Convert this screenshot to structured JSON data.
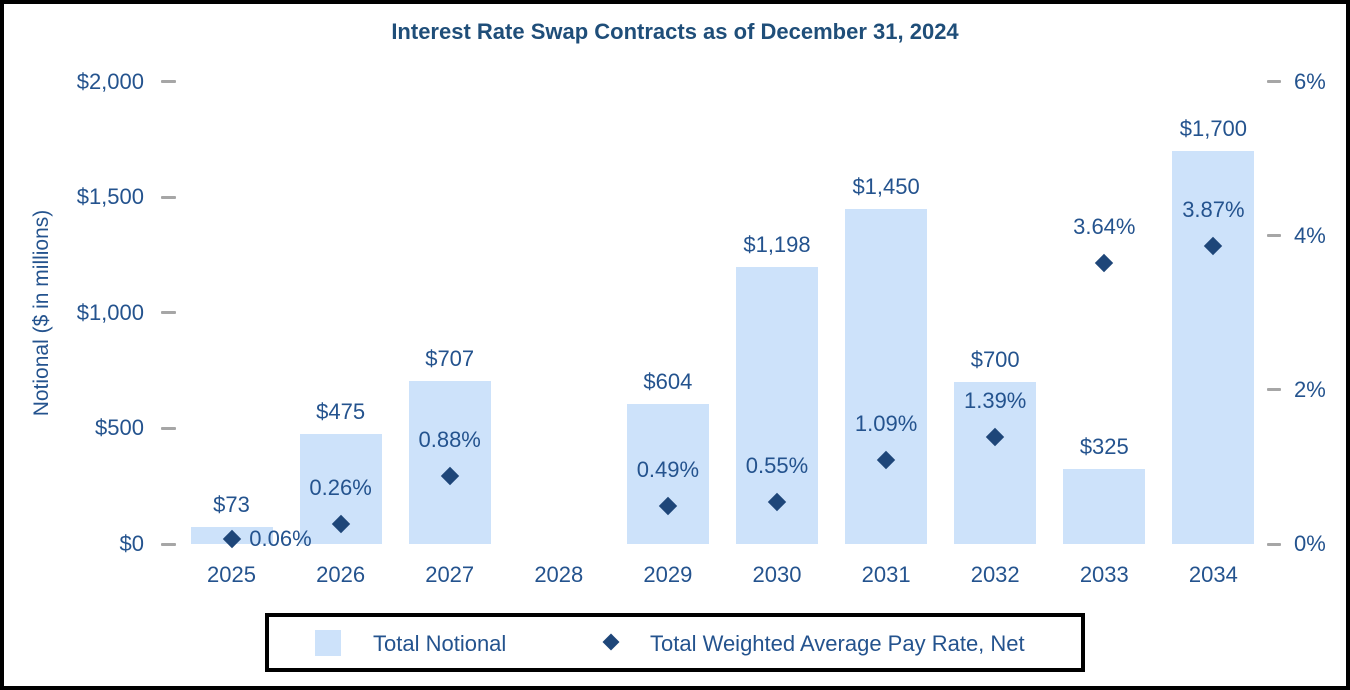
{
  "title": "Interest Rate Swap Contracts as of December 31, 2024",
  "colors": {
    "bar_fill": "#CDE2FA",
    "marker_fill": "#1E4679",
    "label_text": "#24538E",
    "title_text": "#1F4E79",
    "tick_dash": "#A6A6A6",
    "border": "#000000",
    "background": "#FFFFFF"
  },
  "chart_data": {
    "type": "bar",
    "subtype": "combo-bar-scatter-dual-axis",
    "title": "Interest Rate Swap Contracts as of December 31, 2024",
    "grid": false,
    "legend_position": "bottom",
    "categories": [
      "2025",
      "2026",
      "2027",
      "2028",
      "2029",
      "2030",
      "2031",
      "2032",
      "2033",
      "2034"
    ],
    "series": [
      {
        "name": "Total Notional",
        "type": "bar",
        "axis": "left",
        "values": [
          73,
          475,
          707,
          null,
          604,
          1198,
          1450,
          700,
          325,
          1700
        ],
        "labels": [
          "$73",
          "$475",
          "$707",
          null,
          "$604",
          "$1,198",
          "$1,450",
          "$700",
          "$325",
          "$1,700"
        ]
      },
      {
        "name": "Total Weighted Average Pay Rate, Net",
        "type": "scatter",
        "marker": "diamond",
        "axis": "right",
        "values": [
          0.06,
          0.26,
          0.88,
          null,
          0.49,
          0.55,
          1.09,
          1.39,
          3.64,
          3.87
        ],
        "labels": [
          "0.06%",
          "0.26%",
          "0.88%",
          null,
          "0.49%",
          "0.55%",
          "1.09%",
          "1.39%",
          "3.64%",
          "3.87%"
        ],
        "label_side": [
          "right",
          "above",
          "above",
          null,
          "above",
          "above",
          "above",
          "above",
          "above",
          "above"
        ]
      }
    ],
    "left_axis": {
      "title": "Notional ($ in millions)",
      "range": [
        0,
        2000
      ],
      "ticks": [
        {
          "value": 2000,
          "label": "$2,000"
        },
        {
          "value": 1500,
          "label": "$1,500"
        },
        {
          "value": 1000,
          "label": "$1,000"
        },
        {
          "value": 500,
          "label": "$500"
        },
        {
          "value": 0,
          "label": "$0"
        }
      ]
    },
    "right_axis": {
      "title": "",
      "range": [
        0,
        6
      ],
      "ticks": [
        {
          "value": 6,
          "label": "6%"
        },
        {
          "value": 4,
          "label": "4%"
        },
        {
          "value": 2,
          "label": "2%"
        },
        {
          "value": 0,
          "label": "0%"
        }
      ]
    },
    "legend": {
      "items": [
        {
          "marker": "square",
          "label": "Total Notional"
        },
        {
          "marker": "diamond",
          "label": "Total Weighted Average Pay Rate, Net"
        }
      ]
    }
  }
}
